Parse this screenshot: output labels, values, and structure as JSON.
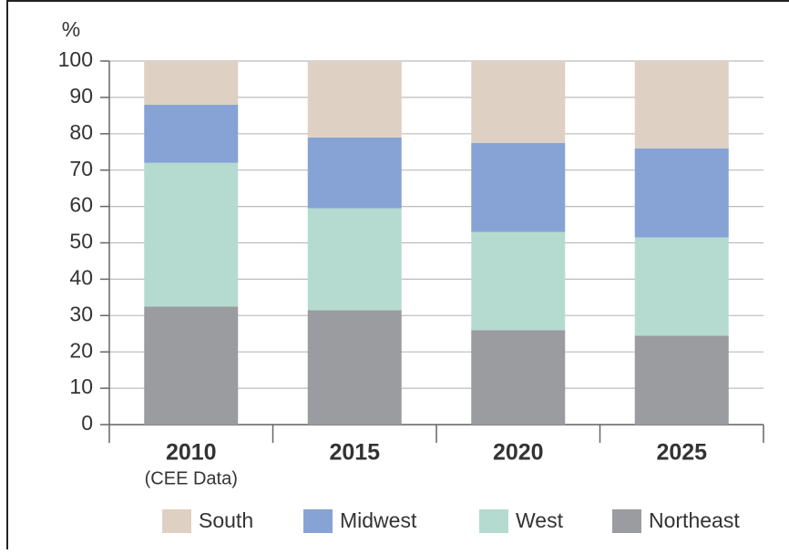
{
  "chart_data": {
    "type": "stacked_bar",
    "y_label": "%",
    "categories": [
      "2010",
      "2015",
      "2020",
      "2025"
    ],
    "category_sublabels": [
      "(CEE Data)",
      null,
      null,
      null
    ],
    "series": [
      {
        "name": "South",
        "color": "#dfd0c4",
        "values": [
          12,
          21,
          22.5,
          24
        ]
      },
      {
        "name": "Midwest",
        "color": "#87a3d5",
        "values": [
          16,
          19.5,
          24.5,
          24.5
        ]
      },
      {
        "name": "West",
        "color": "#b5dbd0",
        "values": [
          39.5,
          28,
          27,
          27
        ]
      },
      {
        "name": "Northeast",
        "color": "#9a9ca0",
        "values": [
          32.5,
          31.5,
          26,
          24.5
        ]
      }
    ],
    "ylim": [
      0,
      100
    ],
    "yticks": [
      0,
      10,
      20,
      30,
      40,
      50,
      60,
      70,
      80,
      90,
      100
    ],
    "grid": true,
    "legend": "bottom"
  }
}
